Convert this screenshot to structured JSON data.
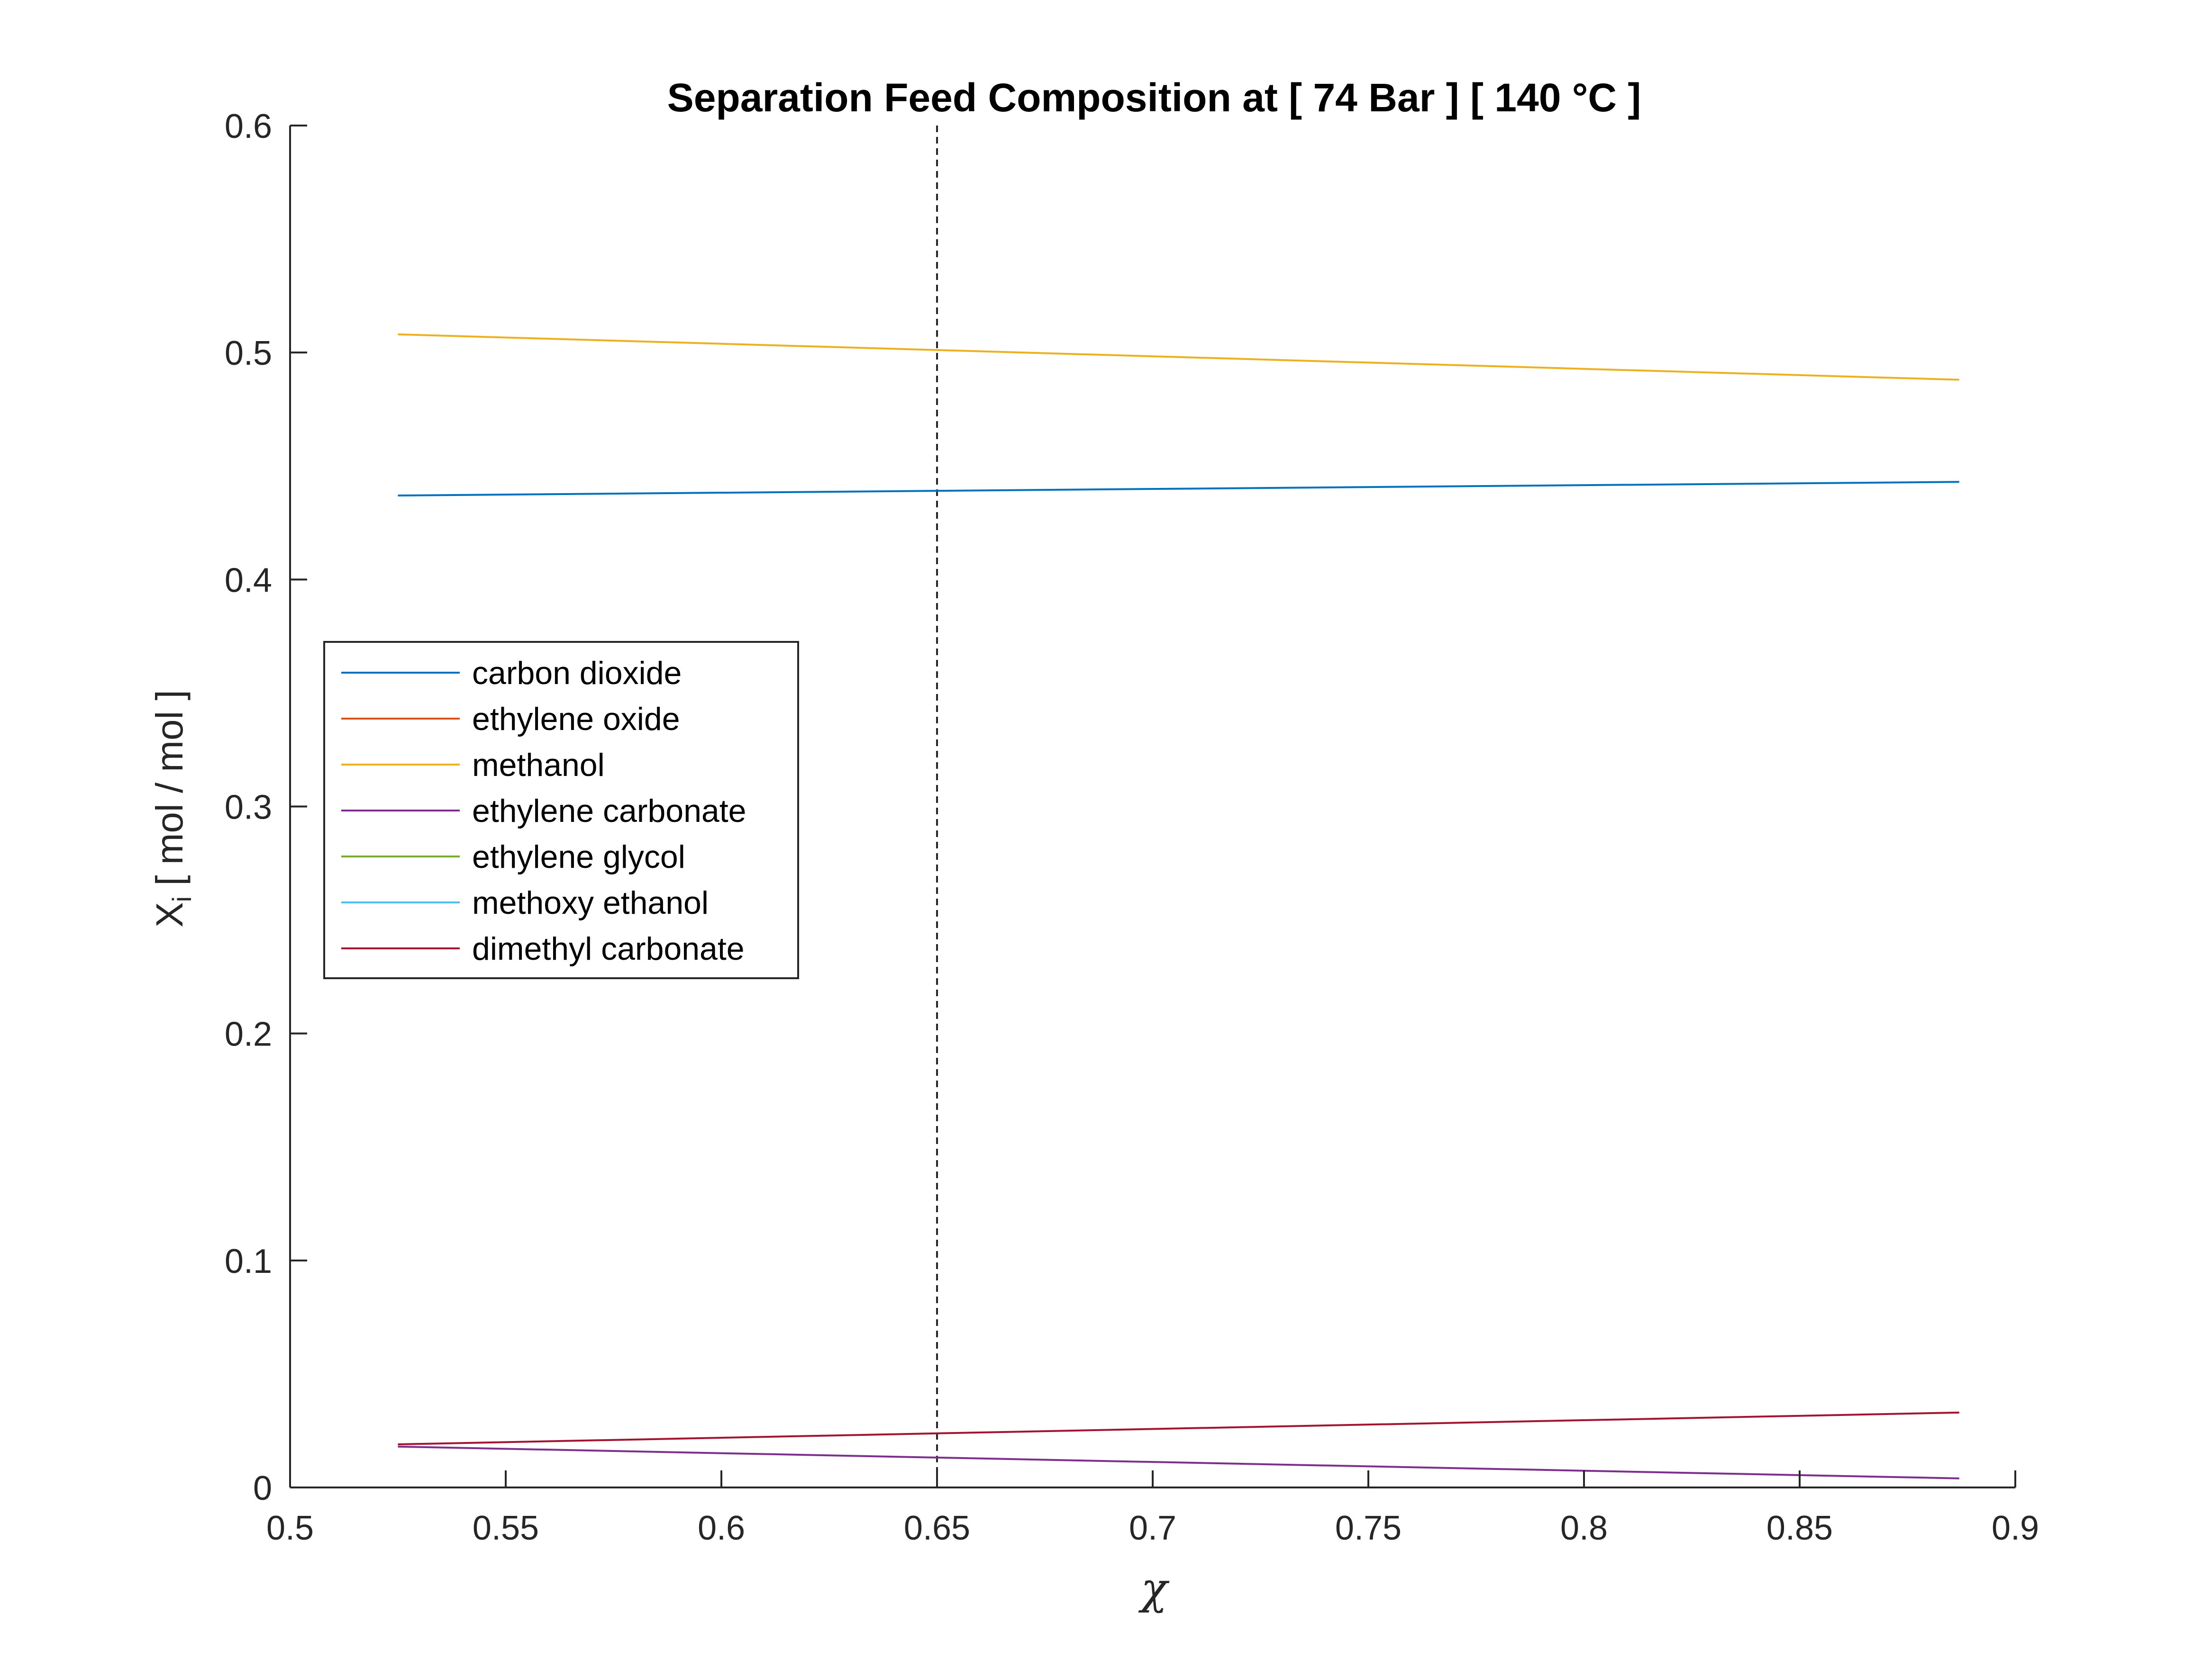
{
  "chart_data": {
    "type": "line",
    "title": "Separation Feed Composition at [  74 Bar ] [ 140 °C ]",
    "xlabel": "χ",
    "ylabel": "X",
    "ylabel_subscript": "i",
    "ylabel_suffix": " [ mol / mol ]",
    "xlim": [
      0.5,
      0.9
    ],
    "ylim": [
      0,
      0.6
    ],
    "xticks": [
      0.5,
      0.55,
      0.6,
      0.65,
      0.7,
      0.75,
      0.8,
      0.85,
      0.9
    ],
    "xtick_labels": [
      "0.5",
      "0.55",
      "0.6",
      "0.65",
      "0.7",
      "0.75",
      "0.8",
      "0.85",
      "0.9"
    ],
    "yticks": [
      0,
      0.1,
      0.2,
      0.3,
      0.4,
      0.5,
      0.6
    ],
    "ytick_labels": [
      "0",
      "0.1",
      "0.2",
      "0.3",
      "0.4",
      "0.5",
      "0.6"
    ],
    "grid": false,
    "legend_position": "middle-left",
    "vline_x": 0.65,
    "x": [
      0.525,
      0.887
    ],
    "series": [
      {
        "name": "carbon dioxide",
        "color": "#0072BD",
        "values": [
          0.437,
          0.443
        ]
      },
      {
        "name": "ethylene oxide",
        "color": "#D95319",
        "values": [
          0.0,
          0.0
        ]
      },
      {
        "name": "methanol",
        "color": "#EDB120",
        "values": [
          0.508,
          0.488
        ]
      },
      {
        "name": "ethylene carbonate",
        "color": "#7E2F8E",
        "values": [
          0.018,
          0.004
        ]
      },
      {
        "name": "ethylene glycol",
        "color": "#77AC30",
        "values": [
          0.0,
          0.0
        ]
      },
      {
        "name": "methoxy ethanol",
        "color": "#4DBEEE",
        "values": [
          0.0,
          0.0
        ]
      },
      {
        "name": "dimethyl carbonate",
        "color": "#A2142F",
        "values": [
          0.019,
          0.033
        ]
      }
    ]
  }
}
